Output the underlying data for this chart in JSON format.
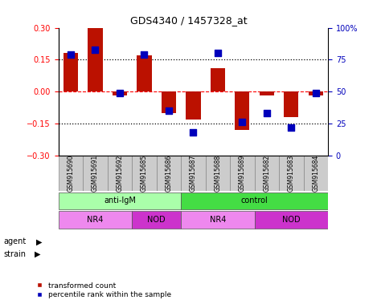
{
  "title": "GDS4340 / 1457328_at",
  "samples": [
    "GSM915690",
    "GSM915691",
    "GSM915692",
    "GSM915685",
    "GSM915686",
    "GSM915687",
    "GSM915688",
    "GSM915689",
    "GSM915682",
    "GSM915683",
    "GSM915684"
  ],
  "red_values": [
    0.18,
    0.3,
    -0.02,
    0.17,
    -0.1,
    -0.13,
    0.11,
    -0.18,
    -0.02,
    -0.12,
    -0.02
  ],
  "blue_values": [
    79,
    83,
    49,
    79,
    35,
    18,
    80,
    26,
    33,
    22,
    49
  ],
  "ylim_left": [
    -0.3,
    0.3
  ],
  "ylim_right": [
    0,
    100
  ],
  "yticks_left": [
    -0.3,
    -0.15,
    0,
    0.15,
    0.3
  ],
  "yticks_right": [
    0,
    25,
    50,
    75,
    100
  ],
  "hline_dotted": [
    0.15,
    -0.15
  ],
  "hline_dashed": [
    0.0
  ],
  "agent_groups": [
    {
      "label": "anti-IgM",
      "start": 0,
      "end": 5,
      "color": "#AAFFAA"
    },
    {
      "label": "control",
      "start": 5,
      "end": 11,
      "color": "#44DD44"
    }
  ],
  "strain_groups": [
    {
      "label": "NR4",
      "start": 0,
      "end": 3,
      "color": "#EE88EE"
    },
    {
      "label": "NOD",
      "start": 3,
      "end": 5,
      "color": "#CC33CC"
    },
    {
      "label": "NR4",
      "start": 5,
      "end": 8,
      "color": "#EE88EE"
    },
    {
      "label": "NOD",
      "start": 8,
      "end": 11,
      "color": "#CC33CC"
    }
  ],
  "bar_color": "#BB1100",
  "dot_color": "#0000BB",
  "bar_width": 0.6,
  "dot_size": 30,
  "legend_labels": [
    "transformed count",
    "percentile rank within the sample"
  ],
  "legend_colors": [
    "#BB1100",
    "#0000BB"
  ],
  "gsm_bg": "#CCCCCC",
  "title_fontsize": 9,
  "tick_fontsize": 7,
  "label_fontsize": 7,
  "gsm_fontsize": 5.5
}
